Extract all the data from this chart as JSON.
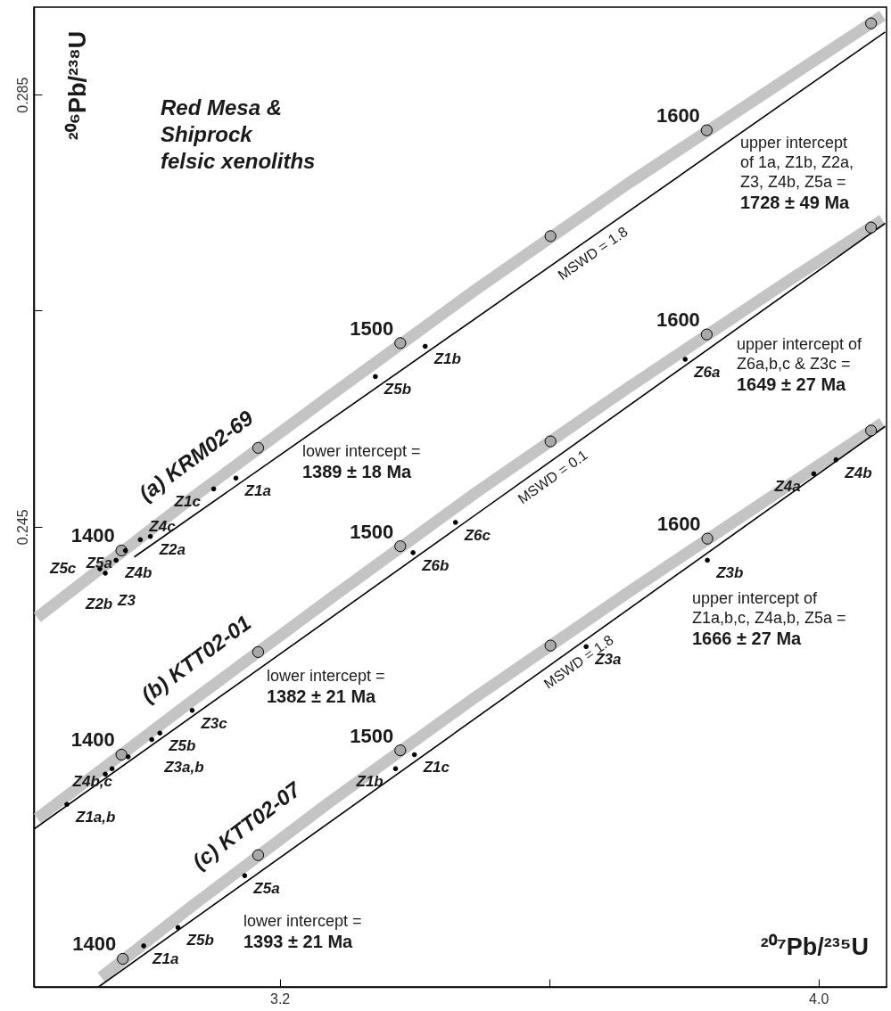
{
  "chart_data": {
    "type": "line",
    "title": "Red Mesa &\nShiprock\nfelsic xenoliths",
    "xlabel": "²⁰⁷Pb/²³⁵U",
    "ylabel": "²⁰⁶Pb/²³⁸U",
    "xlim": [
      2.835,
      4.101
    ],
    "ylim": [
      0.2024,
      0.2931
    ],
    "xticks": [
      3.2,
      {
        "value": 3.6,
        "label": null
      },
      {
        "value": 4,
        "label": "4.0"
      }
    ],
    "yticks": [
      0.245,
      {
        "value": 0.265,
        "label": null
      },
      0.285
    ],
    "grid": false,
    "series": [
      {
        "type": "line",
        "name": "(a) KRM02-69",
        "color": "#c4c4c4",
        "x": [
          2.84,
          3.066,
          3.274,
          3.49,
          3.718,
          3.956,
          4.095
        ],
        "values": [
          0.2366,
          0.2475,
          0.2571,
          0.2669,
          0.2768,
          0.2866,
          0.2923
        ]
      },
      {
        "type": "line",
        "name": "MSWD = 1.8",
        "color": "#000000",
        "x": [
          2.984,
          4.099
        ],
        "values": [
          0.2422,
          0.2908
        ]
      },
      {
        "type": "line",
        "name": "(b) KTT02-01",
        "color": "#c4c4c4",
        "x": [
          2.84,
          3.066,
          3.274,
          3.49,
          3.718,
          3.956,
          4.095
        ],
        "values": [
          0.218,
          0.2287,
          0.2383,
          0.2481,
          0.2579,
          0.2678,
          0.2734
        ]
      },
      {
        "type": "line",
        "name": "MSWD = 0.1",
        "color": "#000000",
        "x": [
          2.835,
          4.099
        ],
        "values": [
          0.217,
          0.2731
        ]
      },
      {
        "type": "line",
        "name": "(c) KTT02-07",
        "color": "#c4c4c4",
        "x": [
          2.935,
          3.068,
          3.274,
          3.49,
          3.719,
          3.957,
          4.095
        ],
        "values": [
          0.2033,
          0.2098,
          0.2195,
          0.2292,
          0.239,
          0.2489,
          0.2546
        ]
      },
      {
        "type": "line",
        "name": "MSWD = 1.8",
        "color": "#000000",
        "x": [
          2.931,
          4.099
        ],
        "values": [
          0.2024,
          0.2543
        ]
      },
      {
        "type": "scatter",
        "color": "#a8a8a8",
        "x": [
          2.965,
          3.168,
          3.379,
          3.602,
          3.834,
          4.078,
          2.965,
          3.168,
          3.379,
          3.602,
          3.834,
          4.078,
          2.967,
          3.168,
          3.379,
          3.602,
          3.835,
          4.078
        ],
        "values": [
          0.2428,
          0.2523,
          0.262,
          0.2719,
          0.2817,
          0.2916,
          0.2239,
          0.2334,
          0.2432,
          0.2529,
          0.2628,
          0.2727,
          0.205,
          0.2146,
          0.2243,
          0.234,
          0.2439,
          0.2539
        ]
      },
      {
        "type": "scatter",
        "color": "#000000",
        "x": [
          3.135,
          3.102,
          3.416,
          3.342,
          3.008,
          2.993,
          2.971,
          2.957,
          2.933,
          2.941,
          3.802,
          3.461,
          3.398,
          3.07,
          3.022,
          3.01,
          2.975,
          2.951,
          2.941,
          2.884,
          4.026,
          3.993,
          3.835,
          3.655,
          3.4,
          3.372,
          3.148,
          3.049,
          2.998
        ],
        "values": [
          0.2495,
          0.2485,
          0.2617,
          0.2589,
          0.2441,
          0.2438,
          0.2428,
          0.2419,
          0.2411,
          0.2407,
          0.2605,
          0.2454,
          0.2426,
          0.228,
          0.2259,
          0.2253,
          0.2237,
          0.2226,
          0.2221,
          0.2193,
          0.2512,
          0.2499,
          0.2419,
          0.2339,
          0.2239,
          0.2226,
          0.2127,
          0.2079,
          0.2062
        ],
        "value_labels": [
          "Z1a",
          "Z1c",
          "Z1b",
          "Z5b",
          "Z2a",
          "Z4c",
          "Z5a",
          "Z4b",
          "Z5c",
          "Z3",
          "Z6a",
          "Z6c",
          "Z6b",
          "Z3c",
          "Z5b",
          "Z3a,b",
          null,
          "Z4b,c",
          null,
          "Z1a,b",
          "Z4b",
          "Z4a",
          "Z3b",
          "Z3a",
          "Z1c",
          "Z1b",
          "Z5a",
          "Z5b",
          "Z1a"
        ]
      }
    ],
    "annotations": [
      {
        "text": "1400",
        "x": 2.965,
        "y": 0.2428
      },
      {
        "text": "1500",
        "x": 3.379,
        "y": 0.262
      },
      {
        "text": "1600",
        "x": 3.834,
        "y": 0.2817
      },
      {
        "text": "1400",
        "x": 2.965,
        "y": 0.2239
      },
      {
        "text": "1500",
        "x": 3.379,
        "y": 0.2432
      },
      {
        "text": "1600",
        "x": 3.834,
        "y": 0.2628
      },
      {
        "text": "1400",
        "x": 2.967,
        "y": 0.205
      },
      {
        "text": "1500",
        "x": 3.379,
        "y": 0.2243
      },
      {
        "text": "1600",
        "x": 3.835,
        "y": 0.2439
      },
      "upper intercept\nof 1a, Z1b, Z2a,\nZ3, Z4b, Z5a =\n1728 ± 49 Ma",
      "lower intercept =\n1389 ± 18 Ma",
      "upper intercept of\nZ6a,b,c & Z3c =\n1649 ± 27 Ma",
      "lower intercept =\n1382 ± 21 Ma",
      "upper intercept of\nZ1a,b,c, Z4a,b, Z5a =\n1666 ± 27 Ma",
      "lower intercept =\n1393 ± 21 Ma",
      "Z2b"
    ]
  }
}
